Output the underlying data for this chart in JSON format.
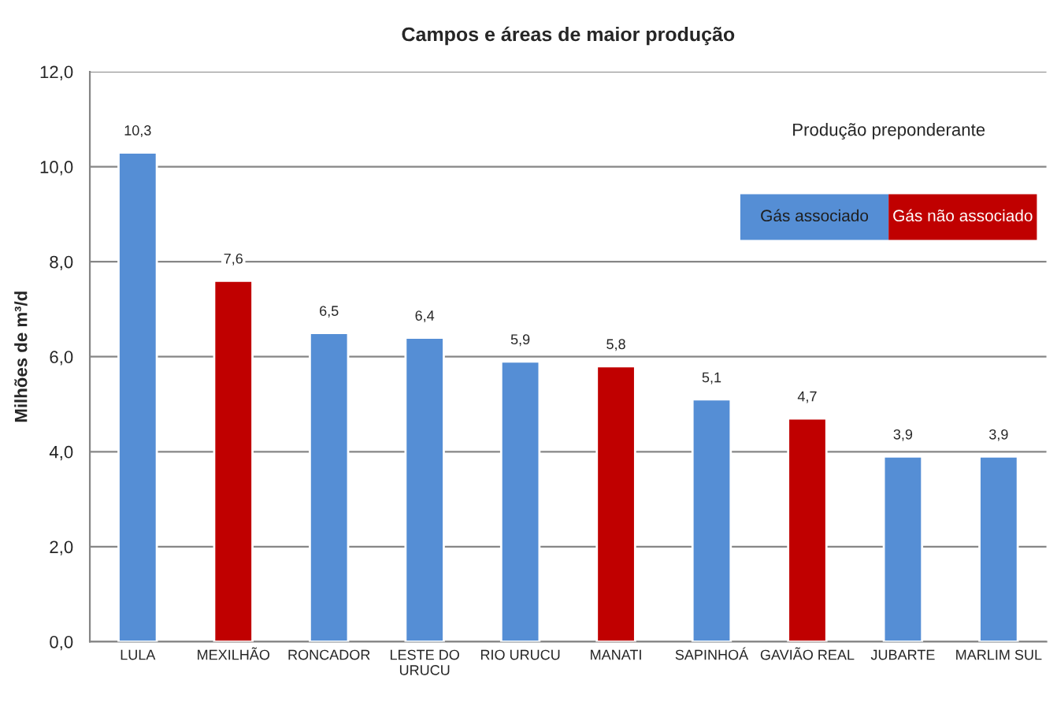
{
  "chart_data": {
    "type": "bar",
    "title": "Campos e áreas de maior produção",
    "ylabel": "Milhões de m³/d",
    "legend_title": "Produção preponderante",
    "categories": [
      "LULA",
      "MEXILHÃO",
      "RONCADOR",
      "LESTE DO\nURUCU",
      "RIO URUCU",
      "MANATI",
      "SAPINHOÁ",
      "GAVIÃO REAL",
      "JUBARTE",
      "MARLIM SUL"
    ],
    "series": [
      {
        "name": "Gás associado",
        "color": "#558ed5",
        "values": [
          10.3,
          null,
          6.5,
          6.4,
          5.9,
          null,
          5.1,
          null,
          3.9,
          3.9
        ],
        "value_labels": [
          "10,3",
          null,
          "6,5",
          "6,4",
          "5,9",
          null,
          "5,1",
          null,
          "3,9",
          "3,9"
        ]
      },
      {
        "name": "Gás não associado",
        "color": "#c00000",
        "values": [
          null,
          7.6,
          null,
          null,
          null,
          5.8,
          null,
          4.7,
          null,
          null
        ],
        "value_labels": [
          null,
          "7,6",
          null,
          null,
          null,
          "5,8",
          null,
          "4,7",
          null,
          null
        ]
      }
    ],
    "ylim": [
      0,
      12
    ],
    "yticks": [
      {
        "value": 0,
        "label": "0,0"
      },
      {
        "value": 2,
        "label": "2,0"
      },
      {
        "value": 4,
        "label": "4,0"
      },
      {
        "value": 6,
        "label": "6,0"
      },
      {
        "value": 8,
        "label": "8,0"
      },
      {
        "value": 10,
        "label": "10,0"
      },
      {
        "value": 12,
        "label": "12,0"
      }
    ],
    "grid": "y",
    "legend": "top right"
  }
}
